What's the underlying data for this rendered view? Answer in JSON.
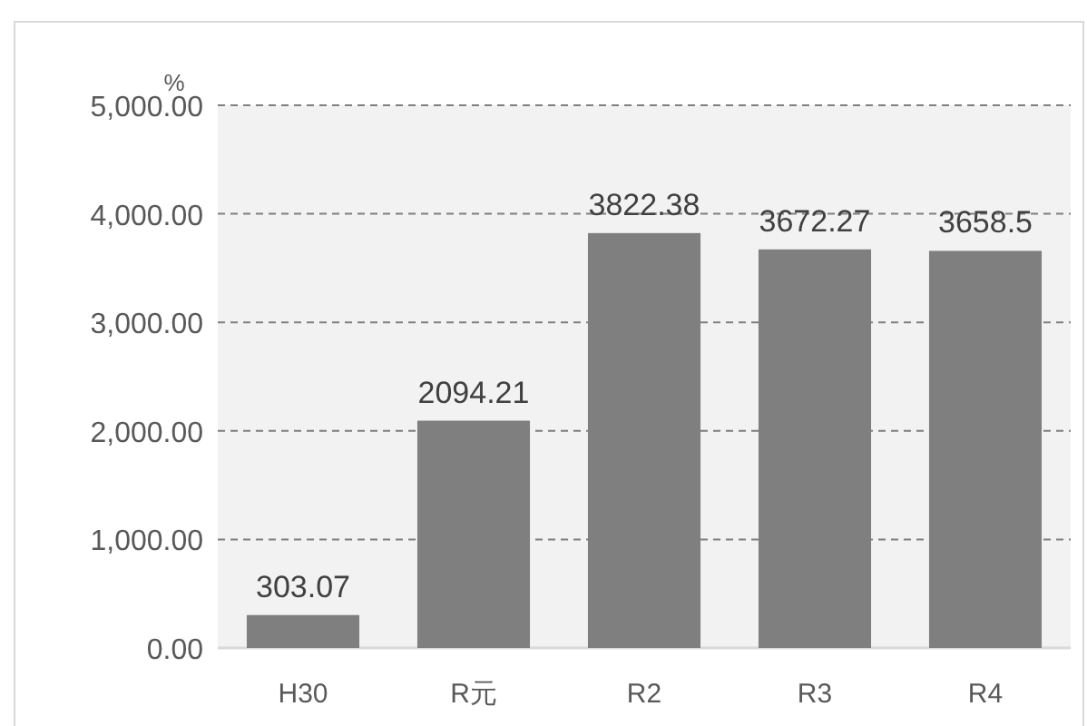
{
  "chart_data": {
    "type": "bar",
    "ylabel": "%",
    "categories": [
      "H30",
      "R元",
      "R2",
      "R3",
      "R4"
    ],
    "values": [
      303.07,
      2094.21,
      3822.38,
      3672.27,
      3658.5
    ],
    "color": "#7f7f7f",
    "data_labels": true,
    "ylim": [
      0,
      5000
    ],
    "yticks": [
      {
        "value": 0,
        "label": "0.00"
      },
      {
        "value": 1000,
        "label": "1,000.00"
      },
      {
        "value": 2000,
        "label": "2,000.00"
      },
      {
        "value": 3000,
        "label": "3,000.00"
      },
      {
        "value": 4000,
        "label": "4,000.00"
      },
      {
        "value": 5000,
        "label": "5,000.00"
      }
    ],
    "grid": "y"
  }
}
